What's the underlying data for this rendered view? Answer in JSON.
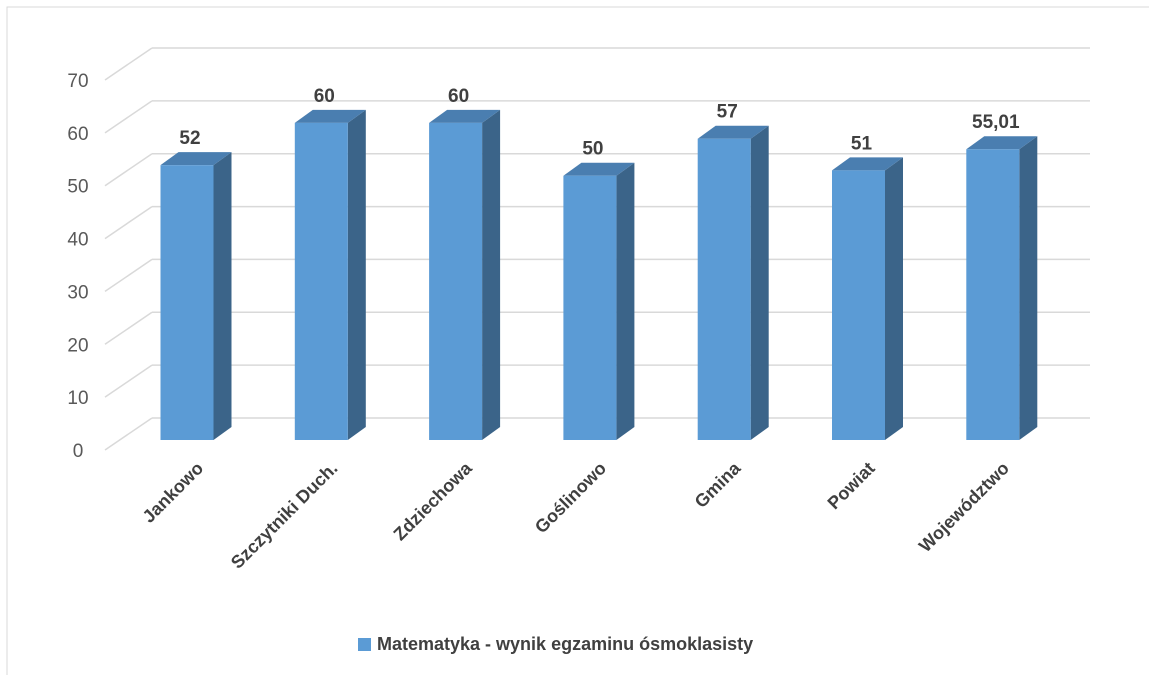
{
  "chart_data": {
    "type": "bar3d",
    "categories": [
      "Jankowo",
      "Szczytniki Duch.",
      "Zdziechowa",
      "Goślinowo",
      "Gmina",
      "Powiat",
      "Województwo"
    ],
    "series": [
      {
        "name": "Matematyka - wynik egzaminu ósmoklasisty",
        "color": "#5b9bd5",
        "values": [
          52,
          60,
          60,
          50,
          57,
          51,
          55.01
        ],
        "value_labels": [
          "52",
          "60",
          "60",
          "50",
          "57",
          "51",
          "55,01"
        ]
      }
    ],
    "ylim": [
      0,
      70
    ],
    "yticks": [
      0,
      10,
      20,
      30,
      40,
      50,
      60,
      70
    ],
    "grid": true,
    "legend": "bottom"
  }
}
